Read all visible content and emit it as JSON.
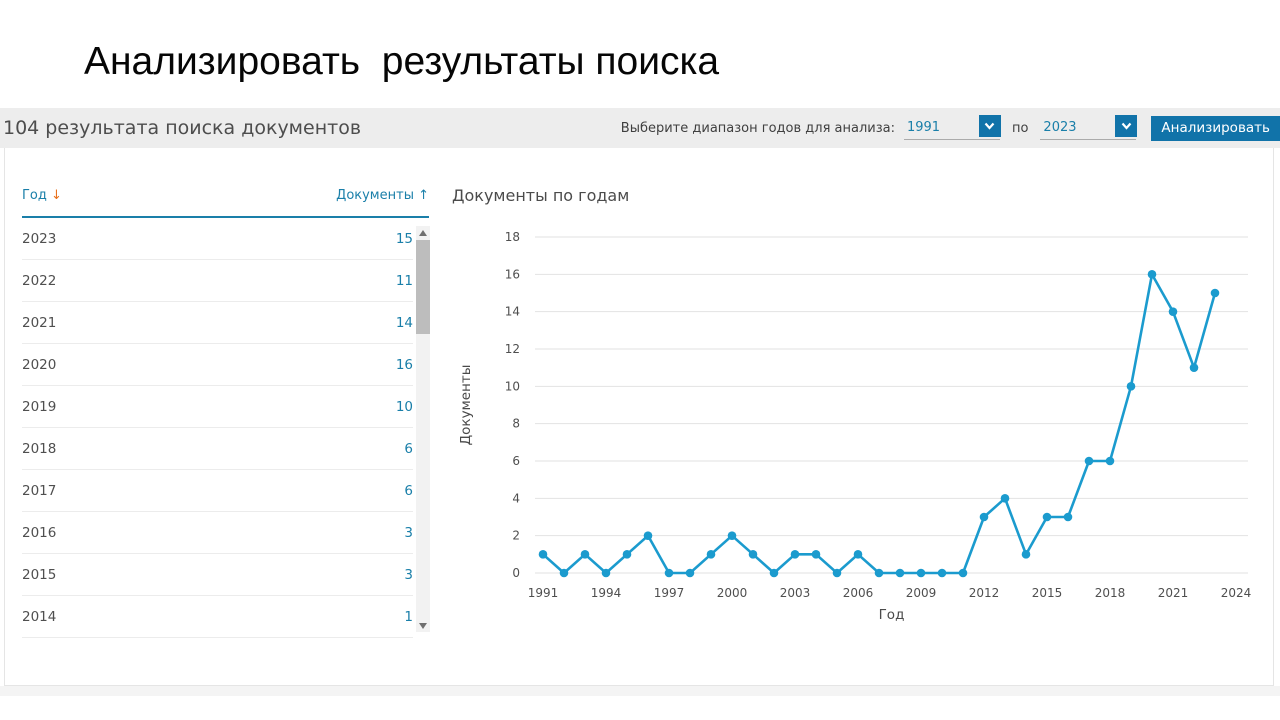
{
  "slide": {
    "title": "Анализировать  результаты поиска"
  },
  "toolbar": {
    "results_summary": "104 результата поиска документов",
    "range_label": "Выберите диапазон годов для анализа:",
    "year_from": "1991",
    "to_label": "по",
    "year_to": "2023",
    "analyze_button": "Анализировать"
  },
  "table": {
    "columns": [
      {
        "label": "Год",
        "sort_icon": "↓",
        "sort_dir": "desc"
      },
      {
        "label": "Документы",
        "sort_icon": "↑",
        "sort_dir": "asc"
      }
    ],
    "rows": [
      {
        "year": "2023",
        "docs": "15"
      },
      {
        "year": "2022",
        "docs": "11"
      },
      {
        "year": "2021",
        "docs": "14"
      },
      {
        "year": "2020",
        "docs": "16"
      },
      {
        "year": "2019",
        "docs": "10"
      },
      {
        "year": "2018",
        "docs": "6"
      },
      {
        "year": "2017",
        "docs": "6"
      },
      {
        "year": "2016",
        "docs": "3"
      },
      {
        "year": "2015",
        "docs": "3"
      },
      {
        "year": "2014",
        "docs": "1"
      }
    ]
  },
  "chart_data": {
    "type": "line",
    "title": "Документы по годам",
    "xlabel": "Год",
    "ylabel": "Документы",
    "x": [
      1991,
      1992,
      1993,
      1994,
      1995,
      1996,
      1997,
      1998,
      1999,
      2000,
      2001,
      2002,
      2003,
      2004,
      2005,
      2006,
      2007,
      2008,
      2009,
      2010,
      2011,
      2012,
      2013,
      2014,
      2015,
      2016,
      2017,
      2018,
      2019,
      2020,
      2021,
      2022,
      2023
    ],
    "values": [
      1,
      0,
      1,
      0,
      1,
      2,
      0,
      0,
      1,
      2,
      1,
      0,
      1,
      1,
      0,
      1,
      0,
      0,
      0,
      0,
      0,
      3,
      4,
      1,
      3,
      3,
      6,
      6,
      10,
      16,
      14,
      11,
      15
    ],
    "xticks": [
      1991,
      1994,
      1997,
      2000,
      2003,
      2006,
      2009,
      2012,
      2015,
      2018,
      2021,
      2024
    ],
    "yticks": [
      0,
      2,
      4,
      6,
      8,
      10,
      12,
      14,
      16,
      18
    ],
    "ylim": [
      0,
      18
    ],
    "xlim": [
      1990.6,
      2024.6
    ],
    "grid": true,
    "legend": false
  },
  "colors": {
    "accent_teal": "#1a7fa9",
    "accent_orange": "#e9711c",
    "button_blue": "#1173a9",
    "line_blue": "#1b9bce",
    "grid_gray": "#e2e2e2",
    "bar_bg": "#ededed"
  }
}
